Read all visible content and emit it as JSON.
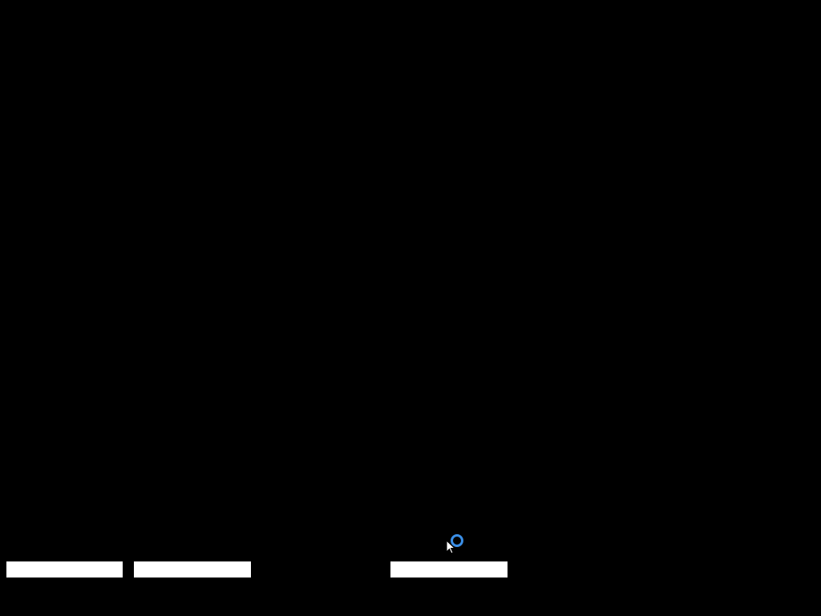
{
  "screen": {
    "background_color": "#000000",
    "bar_color": "#ffffff",
    "busy_indicator_color": "#3a8ee6",
    "bars": [
      {},
      {},
      {}
    ],
    "icons": {
      "cursor": "arrow-pointer-icon",
      "busy": "busy-spinner-icon"
    }
  }
}
